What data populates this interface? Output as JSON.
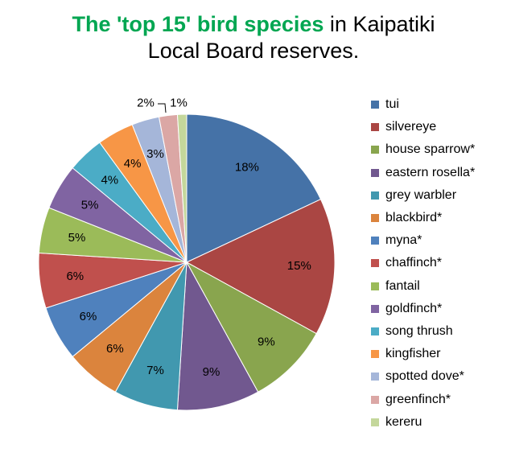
{
  "title": {
    "highlight": "The 'top 15' bird species",
    "line1_rest": " in Kaipatiki",
    "line2": "Local Board reserves."
  },
  "chart_data": {
    "type": "pie",
    "categories": [
      "tui",
      "silvereye",
      "house sparrow*",
      "eastern rosella*",
      "grey warbler",
      "blackbird*",
      "myna*",
      "chaffinch*",
      "fantail",
      "goldfinch*",
      "song thrush",
      "kingfisher",
      "spotted dove*",
      "greenfinch*",
      "kereru"
    ],
    "values": [
      18,
      15,
      9,
      9,
      7,
      6,
      6,
      6,
      5,
      5,
      4,
      4,
      3,
      2,
      1
    ],
    "data_labels": [
      "18%",
      "15%",
      "9%",
      "9%",
      "7%",
      "6%",
      "6%",
      "6%",
      "5%",
      "5%",
      "4%",
      "4%",
      "3%",
      "2%",
      "1%"
    ],
    "colors": [
      "#4572a7",
      "#aa4643",
      "#89a54e",
      "#71588f",
      "#4198af",
      "#db843d",
      "#4f81bd",
      "#c0504d",
      "#9bbb59",
      "#8064a2",
      "#4bacc6",
      "#f79646",
      "#a5b6d9",
      "#dba7a5",
      "#c4d79b"
    ],
    "legend_position": "right"
  }
}
